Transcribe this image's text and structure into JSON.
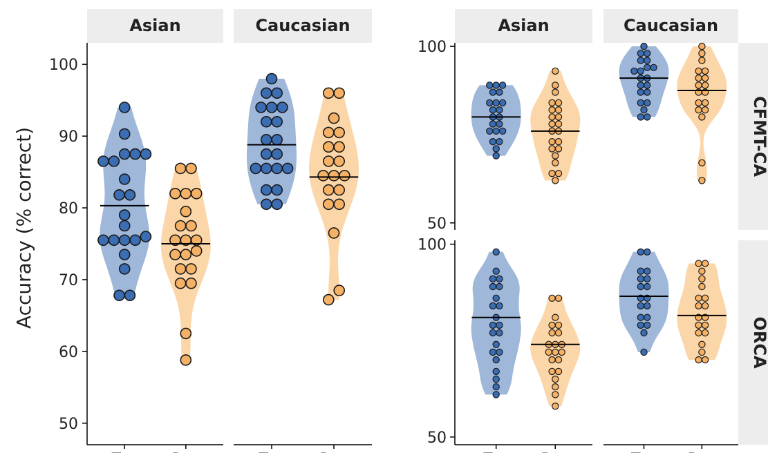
{
  "colors": {
    "typical": "#3b6db3",
    "typical_violin": "#9fb7d9",
    "dyslexia": "#f5b165",
    "dyslexia_violin": "#fbd6a8",
    "strip": "#ededed",
    "outline": "#1a1a1a"
  },
  "chart_data": [
    {
      "type": "violin",
      "ylabel": "Accuracy (% correct)",
      "ylim": [
        47,
        103
      ],
      "yticks": [
        50,
        60,
        70,
        80,
        90,
        100
      ],
      "facets": [
        {
          "title": "Asian",
          "categories": [
            "Typ",
            "Dys"
          ],
          "groups": [
            {
              "name": "Typ",
              "median": 80.3,
              "points": [
                94,
                90.3,
                87.5,
                87.5,
                87.5,
                86.5,
                86.5,
                84,
                81.8,
                81.8,
                79,
                77.5,
                76,
                75.5,
                75.5,
                75.5,
                75.5,
                73.5,
                71.5,
                67.8,
                67.8
              ]
            },
            {
              "name": "Dys",
              "median": 75,
              "points": [
                85.5,
                85.5,
                82,
                82,
                82,
                79.5,
                77.5,
                77.5,
                75.5,
                75.5,
                75.5,
                74,
                73.5,
                73.5,
                71.5,
                71.5,
                69.5,
                69.5,
                62.5,
                58.8
              ]
            }
          ]
        },
        {
          "title": "Caucasian",
          "categories": [
            "Typ",
            "Dys"
          ],
          "groups": [
            {
              "name": "Typ",
              "median": 88.8,
              "points": [
                98,
                96,
                96,
                94,
                94,
                94,
                92,
                92,
                89.5,
                89.5,
                87.5,
                87.5,
                85.5,
                85.5,
                85.5,
                85.5,
                82.5,
                82.5,
                80.5,
                80.5
              ]
            },
            {
              "name": "Dys",
              "median": 84.3,
              "points": [
                96,
                96,
                92.5,
                90.5,
                90.5,
                88.5,
                88.5,
                86.5,
                86.5,
                84.5,
                84.5,
                84.5,
                82.5,
                82.5,
                80.5,
                80.5,
                76.5,
                68.5,
                67.2
              ]
            }
          ]
        }
      ]
    },
    {
      "type": "violin",
      "panels": [
        {
          "row": "CFMT-CA",
          "ylim": [
            48,
            101
          ],
          "yticks": [
            50,
            100
          ],
          "facets": [
            {
              "title": "Asian",
              "categories": [
                "Typ",
                "Dys"
              ],
              "groups": [
                {
                  "name": "Typ",
                  "median": 80,
                  "points": [
                    89,
                    89,
                    89,
                    87,
                    87,
                    84,
                    84,
                    84,
                    82,
                    82,
                    80,
                    80,
                    78,
                    78,
                    76,
                    76,
                    76,
                    73,
                    73,
                    71,
                    69
                  ]
                },
                {
                  "name": "Dys",
                  "median": 76,
                  "points": [
                    93,
                    89,
                    87,
                    84,
                    84,
                    82,
                    82,
                    80,
                    80,
                    78,
                    78,
                    76,
                    76,
                    73,
                    73,
                    71,
                    71,
                    69,
                    67,
                    64,
                    64,
                    62
                  ]
                }
              ]
            },
            {
              "title": "Caucasian",
              "categories": [
                "Typ",
                "Dys"
              ],
              "groups": [
                {
                  "name": "Typ",
                  "median": 91,
                  "points": [
                    100,
                    98,
                    98,
                    96,
                    96,
                    94,
                    94,
                    93,
                    93,
                    91,
                    91,
                    89,
                    89,
                    87,
                    87,
                    84,
                    84,
                    82,
                    80,
                    80
                  ]
                },
                {
                  "name": "Dys",
                  "median": 87.5,
                  "points": [
                    100,
                    98,
                    96,
                    93,
                    93,
                    91,
                    91,
                    89,
                    89,
                    87,
                    87,
                    84,
                    84,
                    82,
                    82,
                    80,
                    67,
                    62
                  ]
                }
              ]
            }
          ]
        },
        {
          "row": "ORCA",
          "ylim": [
            48,
            101
          ],
          "yticks": [
            50,
            100
          ],
          "facets": [
            {
              "title": "Asian",
              "categories": [
                "Typ",
                "Dys"
              ],
              "groups": [
                {
                  "name": "Typ",
                  "median": 81,
                  "points": [
                    98,
                    93,
                    91,
                    91,
                    89,
                    89,
                    86,
                    84,
                    84,
                    81,
                    79,
                    79,
                    77,
                    77,
                    74,
                    72,
                    72,
                    70,
                    67,
                    65,
                    63,
                    61
                  ]
                },
                {
                  "name": "Dys",
                  "median": 74,
                  "points": [
                    86,
                    86,
                    81,
                    79,
                    79,
                    77,
                    77,
                    74,
                    74,
                    74,
                    72,
                    72,
                    72,
                    70,
                    70,
                    67,
                    67,
                    65,
                    63,
                    61,
                    58
                  ]
                }
              ]
            },
            {
              "title": "Caucasian",
              "categories": [
                "Typ",
                "Dys"
              ],
              "groups": [
                {
                  "name": "Typ",
                  "median": 86.5,
                  "points": [
                    98,
                    98,
                    93,
                    93,
                    91,
                    91,
                    89,
                    89,
                    86,
                    86,
                    84,
                    84,
                    81,
                    81,
                    79,
                    79,
                    77,
                    72
                  ]
                },
                {
                  "name": "Dys",
                  "median": 81.5,
                  "points": [
                    95,
                    95,
                    93,
                    91,
                    89,
                    86,
                    86,
                    84,
                    84,
                    81,
                    81,
                    79,
                    79,
                    77,
                    77,
                    74,
                    72,
                    70,
                    70
                  ]
                }
              ]
            }
          ]
        }
      ]
    }
  ]
}
